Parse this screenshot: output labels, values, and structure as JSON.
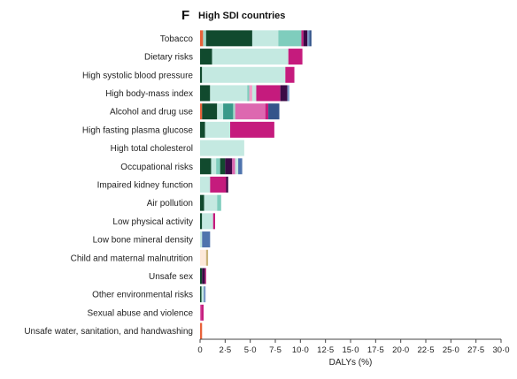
{
  "chart_data": {
    "type": "bar",
    "stacked": true,
    "orientation": "horizontal",
    "panel_letter": "F",
    "title": "High SDI countries",
    "xlabel": "DALYs (%)",
    "ylabel": "",
    "xlim": [
      0,
      30
    ],
    "x_ticks": [
      0,
      2.5,
      5,
      7.5,
      10,
      12.5,
      15,
      17.5,
      20,
      22.5,
      25,
      27.5,
      30
    ],
    "x_tick_labels": [
      "0",
      "2·5",
      "5·0",
      "7·5",
      "10·0",
      "12·5",
      "15·0",
      "17·5",
      "20·0",
      "22·5",
      "25·0",
      "27·5",
      "30·0"
    ],
    "grid": false,
    "legend": "none",
    "categories": [
      "Tobacco",
      "Dietary risks",
      "High systolic blood pressure",
      "High body-mass index",
      "Alcohol and drug use",
      "High fasting plasma glucose",
      "High total cholesterol",
      "Occupational risks",
      "Impaired kidney function",
      "Air pollution",
      "Low physical activity",
      "Low bone mineral density",
      "Child and maternal malnutrition",
      "Unsafe sex",
      "Other environmental risks",
      "Sexual abuse and violence",
      "Unsafe water, sanitation, and handwashing"
    ],
    "bars": [
      [
        {
          "v": 0.3,
          "c": "#e8623a"
        },
        {
          "v": 0.3,
          "c": "#9fd9c9"
        },
        {
          "v": 4.6,
          "c": "#114a2e"
        },
        {
          "v": 2.6,
          "c": "#c4e9e1"
        },
        {
          "v": 2.3,
          "c": "#7fcdbd"
        },
        {
          "v": 0.2,
          "c": "#c51b7d"
        },
        {
          "v": 0.4,
          "c": "#3b0a45"
        },
        {
          "v": 0.2,
          "c": "#7b9ac8"
        },
        {
          "v": 0.2,
          "c": "#34558b"
        }
      ],
      [
        {
          "v": 1.2,
          "c": "#114a2e"
        },
        {
          "v": 7.6,
          "c": "#c4e9e1"
        },
        {
          "v": 1.4,
          "c": "#c51b7d"
        }
      ],
      [
        {
          "v": 0.2,
          "c": "#114a2e"
        },
        {
          "v": 8.3,
          "c": "#c4e9e1"
        },
        {
          "v": 0.9,
          "c": "#c51b7d"
        }
      ],
      [
        {
          "v": 1.0,
          "c": "#114a2e"
        },
        {
          "v": 3.7,
          "c": "#c4e9e1"
        },
        {
          "v": 0.2,
          "c": "#7fcdbd"
        },
        {
          "v": 0.3,
          "c": "#f2a0c8"
        },
        {
          "v": 0.4,
          "c": "#c4e9e1"
        },
        {
          "v": 2.4,
          "c": "#c51b7d"
        },
        {
          "v": 0.7,
          "c": "#3b0a45"
        },
        {
          "v": 0.2,
          "c": "#7b9ac8"
        }
      ],
      [
        {
          "v": 0.2,
          "c": "#e8623a"
        },
        {
          "v": 1.5,
          "c": "#114a2e"
        },
        {
          "v": 0.6,
          "c": "#c4e9e1"
        },
        {
          "v": 1.0,
          "c": "#3a9a8a"
        },
        {
          "v": 0.2,
          "c": "#9fd9c9"
        },
        {
          "v": 3.0,
          "c": "#dd68b0"
        },
        {
          "v": 0.3,
          "c": "#c51b7d"
        },
        {
          "v": 1.1,
          "c": "#34558b"
        }
      ],
      [
        {
          "v": 0.5,
          "c": "#114a2e"
        },
        {
          "v": 2.5,
          "c": "#c4e9e1"
        },
        {
          "v": 4.4,
          "c": "#c51b7d"
        }
      ],
      [
        {
          "v": 4.4,
          "c": "#c4e9e1"
        }
      ],
      [
        {
          "v": 1.1,
          "c": "#114a2e"
        },
        {
          "v": 0.5,
          "c": "#c4e9e1"
        },
        {
          "v": 0.4,
          "c": "#7fcdbd"
        },
        {
          "v": 0.5,
          "c": "#114a2e"
        },
        {
          "v": 0.7,
          "c": "#3b0a45"
        },
        {
          "v": 0.3,
          "c": "#dd68b0"
        },
        {
          "v": 0.3,
          "c": "#c4e9e1"
        },
        {
          "v": 0.4,
          "c": "#4f74ad"
        }
      ],
      [
        {
          "v": 1.0,
          "c": "#c4e9e1"
        },
        {
          "v": 1.6,
          "c": "#c51b7d"
        },
        {
          "v": 0.2,
          "c": "#3b0a45"
        }
      ],
      [
        {
          "v": 0.4,
          "c": "#114a2e"
        },
        {
          "v": 1.3,
          "c": "#c4e9e1"
        },
        {
          "v": 0.4,
          "c": "#7fcdbd"
        }
      ],
      [
        {
          "v": 0.2,
          "c": "#114a2e"
        },
        {
          "v": 1.1,
          "c": "#c4e9e1"
        },
        {
          "v": 0.2,
          "c": "#c51b7d"
        }
      ],
      [
        {
          "v": 0.2,
          "c": "#c4e9e1"
        },
        {
          "v": 0.8,
          "c": "#4f74ad"
        }
      ],
      [
        {
          "v": 0.6,
          "c": "#fde9d9"
        },
        {
          "v": 0.2,
          "c": "#c9b27a"
        }
      ],
      [
        {
          "v": 0.2,
          "c": "#114a2e"
        },
        {
          "v": 0.3,
          "c": "#3b0a45"
        },
        {
          "v": 0.1,
          "c": "#c51b7d"
        }
      ],
      [
        {
          "v": 0.15,
          "c": "#114a2e"
        },
        {
          "v": 0.2,
          "c": "#c4e9e1"
        },
        {
          "v": 0.2,
          "c": "#7b9ac8"
        }
      ],
      [
        {
          "v": 0.1,
          "c": "#dd68b0"
        },
        {
          "v": 0.25,
          "c": "#c51b7d"
        }
      ],
      [
        {
          "v": 0.2,
          "c": "#e8623a"
        }
      ]
    ]
  }
}
